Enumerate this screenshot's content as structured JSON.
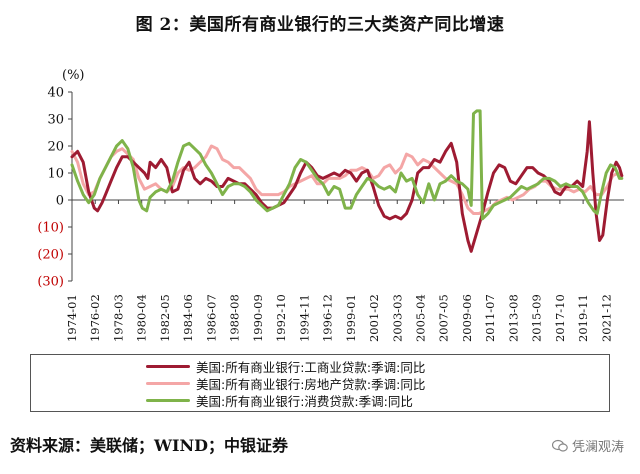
{
  "title": "图 2：美国所有商业银行的三大类资产同比增速",
  "source": "资料来源：美联储；WIND；中银证券",
  "watermark": "凭澜观涛",
  "chart_data": {
    "type": "line",
    "ylabel": "(%)",
    "ylim": [
      -30,
      40
    ],
    "yticks": [
      40,
      30,
      20,
      10,
      0,
      -10,
      -20,
      -30
    ],
    "ytick_labels": [
      "40",
      "30",
      "20",
      "10",
      "0",
      "(10)",
      "(20)",
      "(30)"
    ],
    "negative_tick_color": "#c00000",
    "xlim": [
      1974.0,
      2023.5
    ],
    "x_ticks": [
      "1974-01",
      "1976-02",
      "1978-03",
      "1980-04",
      "1982-05",
      "1984-06",
      "1986-07",
      "1988-08",
      "1990-09",
      "1992-10",
      "1994-11",
      "1996-12",
      "1999-01",
      "2001-02",
      "2003-03",
      "2005-04",
      "2007-05",
      "2009-06",
      "2011-07",
      "2013-08",
      "2015-09",
      "2017-10",
      "2019-11",
      "2021-12"
    ],
    "series": [
      {
        "name": "美国:所有商业银行:工商业贷款:季调:同比",
        "color": "#9e1b32",
        "points": [
          [
            1974.0,
            16
          ],
          [
            1974.5,
            18
          ],
          [
            1975.0,
            14
          ],
          [
            1975.5,
            3
          ],
          [
            1976.0,
            -3
          ],
          [
            1976.3,
            -4
          ],
          [
            1976.7,
            -1
          ],
          [
            1977.0,
            2
          ],
          [
            1977.5,
            7
          ],
          [
            1978.0,
            12
          ],
          [
            1978.5,
            16
          ],
          [
            1979.0,
            16
          ],
          [
            1979.5,
            14
          ],
          [
            1980.0,
            12
          ],
          [
            1980.5,
            10
          ],
          [
            1980.8,
            8
          ],
          [
            1981.0,
            14
          ],
          [
            1981.5,
            12
          ],
          [
            1982.0,
            15
          ],
          [
            1982.5,
            12
          ],
          [
            1983.0,
            3
          ],
          [
            1983.5,
            4
          ],
          [
            1984.0,
            11
          ],
          [
            1984.5,
            14
          ],
          [
            1985.0,
            8
          ],
          [
            1985.5,
            6
          ],
          [
            1986.0,
            8
          ],
          [
            1986.5,
            7
          ],
          [
            1987.0,
            5
          ],
          [
            1987.5,
            5
          ],
          [
            1988.0,
            8
          ],
          [
            1988.5,
            7
          ],
          [
            1989.0,
            6
          ],
          [
            1989.5,
            6
          ],
          [
            1990.0,
            4
          ],
          [
            1990.5,
            2
          ],
          [
            1991.0,
            -1
          ],
          [
            1991.5,
            -3
          ],
          [
            1992.0,
            -3
          ],
          [
            1992.5,
            -2
          ],
          [
            1993.0,
            -1
          ],
          [
            1993.5,
            2
          ],
          [
            1994.0,
            5
          ],
          [
            1994.5,
            10
          ],
          [
            1995.0,
            14
          ],
          [
            1995.5,
            12
          ],
          [
            1996.0,
            9
          ],
          [
            1996.5,
            8
          ],
          [
            1997.0,
            9
          ],
          [
            1997.5,
            10
          ],
          [
            1998.0,
            9
          ],
          [
            1998.5,
            11
          ],
          [
            1999.0,
            10
          ],
          [
            1999.5,
            7
          ],
          [
            2000.0,
            10
          ],
          [
            2000.5,
            11
          ],
          [
            2001.0,
            5
          ],
          [
            2001.5,
            -2
          ],
          [
            2002.0,
            -6
          ],
          [
            2002.5,
            -7
          ],
          [
            2003.0,
            -6
          ],
          [
            2003.5,
            -7
          ],
          [
            2004.0,
            -5
          ],
          [
            2004.5,
            0
          ],
          [
            2005.0,
            10
          ],
          [
            2005.5,
            12
          ],
          [
            2006.0,
            12
          ],
          [
            2006.5,
            15
          ],
          [
            2007.0,
            14
          ],
          [
            2007.5,
            18
          ],
          [
            2008.0,
            21
          ],
          [
            2008.5,
            14
          ],
          [
            2009.0,
            -5
          ],
          [
            2009.5,
            -15
          ],
          [
            2009.8,
            -19
          ],
          [
            2010.3,
            -12
          ],
          [
            2010.8,
            -5
          ],
          [
            2011.3,
            3
          ],
          [
            2011.8,
            10
          ],
          [
            2012.3,
            13
          ],
          [
            2012.8,
            12
          ],
          [
            2013.3,
            7
          ],
          [
            2013.8,
            6
          ],
          [
            2014.3,
            9
          ],
          [
            2014.8,
            12
          ],
          [
            2015.3,
            12
          ],
          [
            2015.8,
            10
          ],
          [
            2016.3,
            9
          ],
          [
            2016.8,
            7
          ],
          [
            2017.3,
            3
          ],
          [
            2017.8,
            2
          ],
          [
            2018.3,
            5
          ],
          [
            2018.8,
            5
          ],
          [
            2019.3,
            7
          ],
          [
            2019.8,
            5
          ],
          [
            2020.2,
            18
          ],
          [
            2020.4,
            29
          ],
          [
            2020.7,
            10
          ],
          [
            2021.0,
            -5
          ],
          [
            2021.3,
            -15
          ],
          [
            2021.6,
            -13
          ],
          [
            2022.0,
            0
          ],
          [
            2022.4,
            10
          ],
          [
            2022.8,
            14
          ],
          [
            2023.1,
            12
          ],
          [
            2023.3,
            9
          ]
        ]
      },
      {
        "name": "美国:所有商业银行:房地产贷款:季调:同比",
        "color": "#f4a6a6",
        "points": [
          [
            1974.0,
            18
          ],
          [
            1974.5,
            14
          ],
          [
            1975.0,
            6
          ],
          [
            1975.5,
            2
          ],
          [
            1976.0,
            3
          ],
          [
            1976.5,
            8
          ],
          [
            1977.0,
            12
          ],
          [
            1977.5,
            16
          ],
          [
            1978.0,
            18
          ],
          [
            1978.5,
            19
          ],
          [
            1979.0,
            17
          ],
          [
            1979.5,
            15
          ],
          [
            1980.0,
            8
          ],
          [
            1980.5,
            4
          ],
          [
            1981.0,
            5
          ],
          [
            1981.5,
            6
          ],
          [
            1982.0,
            4
          ],
          [
            1982.5,
            3
          ],
          [
            1983.0,
            5
          ],
          [
            1983.5,
            10
          ],
          [
            1984.0,
            12
          ],
          [
            1984.5,
            11
          ],
          [
            1985.0,
            12
          ],
          [
            1985.5,
            14
          ],
          [
            1986.0,
            16
          ],
          [
            1986.5,
            20
          ],
          [
            1987.0,
            19
          ],
          [
            1987.5,
            15
          ],
          [
            1988.0,
            14
          ],
          [
            1988.5,
            12
          ],
          [
            1989.0,
            12
          ],
          [
            1989.5,
            10
          ],
          [
            1990.0,
            8
          ],
          [
            1990.5,
            4
          ],
          [
            1991.0,
            2
          ],
          [
            1991.5,
            2
          ],
          [
            1992.0,
            2
          ],
          [
            1992.5,
            2
          ],
          [
            1993.0,
            3
          ],
          [
            1993.5,
            5
          ],
          [
            1994.0,
            6
          ],
          [
            1994.5,
            7
          ],
          [
            1995.0,
            8
          ],
          [
            1995.5,
            9
          ],
          [
            1996.0,
            6
          ],
          [
            1996.5,
            6
          ],
          [
            1997.0,
            8
          ],
          [
            1997.5,
            8
          ],
          [
            1998.0,
            8
          ],
          [
            1998.5,
            9
          ],
          [
            1999.0,
            11
          ],
          [
            1999.5,
            11
          ],
          [
            2000.0,
            12
          ],
          [
            2000.5,
            11
          ],
          [
            2001.0,
            8
          ],
          [
            2001.5,
            9
          ],
          [
            2002.0,
            12
          ],
          [
            2002.5,
            13
          ],
          [
            2003.0,
            10
          ],
          [
            2003.5,
            12
          ],
          [
            2004.0,
            17
          ],
          [
            2004.5,
            16
          ],
          [
            2005.0,
            13
          ],
          [
            2005.5,
            15
          ],
          [
            2006.0,
            14
          ],
          [
            2006.5,
            12
          ],
          [
            2007.0,
            10
          ],
          [
            2007.5,
            8
          ],
          [
            2008.0,
            7
          ],
          [
            2008.5,
            6
          ],
          [
            2009.0,
            2
          ],
          [
            2009.5,
            -3
          ],
          [
            2010.0,
            -5
          ],
          [
            2010.5,
            -5
          ],
          [
            2011.0,
            -4
          ],
          [
            2011.5,
            -3
          ],
          [
            2012.0,
            -1
          ],
          [
            2012.5,
            0
          ],
          [
            2013.0,
            1
          ],
          [
            2013.5,
            0
          ],
          [
            2014.0,
            1
          ],
          [
            2014.5,
            2
          ],
          [
            2015.0,
            4
          ],
          [
            2015.5,
            5
          ],
          [
            2016.0,
            7
          ],
          [
            2016.5,
            7
          ],
          [
            2017.0,
            5
          ],
          [
            2017.5,
            4
          ],
          [
            2018.0,
            4
          ],
          [
            2018.5,
            4
          ],
          [
            2019.0,
            3
          ],
          [
            2019.5,
            4
          ],
          [
            2020.0,
            3
          ],
          [
            2020.5,
            5
          ],
          [
            2021.0,
            2
          ],
          [
            2021.5,
            2
          ],
          [
            2022.0,
            5
          ],
          [
            2022.5,
            9
          ],
          [
            2023.0,
            10
          ],
          [
            2023.3,
            9
          ]
        ]
      },
      {
        "name": "美国:所有商业银行:消费贷款:季调:同比",
        "color": "#7fb34a",
        "points": [
          [
            1974.0,
            13
          ],
          [
            1974.5,
            7
          ],
          [
            1975.0,
            2
          ],
          [
            1975.5,
            -1
          ],
          [
            1976.0,
            2
          ],
          [
            1976.5,
            8
          ],
          [
            1977.0,
            12
          ],
          [
            1977.5,
            16
          ],
          [
            1978.0,
            20
          ],
          [
            1978.5,
            22
          ],
          [
            1979.0,
            19
          ],
          [
            1979.5,
            12
          ],
          [
            1980.0,
            0
          ],
          [
            1980.3,
            -3
          ],
          [
            1980.7,
            -4
          ],
          [
            1981.0,
            1
          ],
          [
            1981.5,
            3
          ],
          [
            1982.0,
            4
          ],
          [
            1982.5,
            3
          ],
          [
            1983.0,
            7
          ],
          [
            1983.5,
            14
          ],
          [
            1984.0,
            20
          ],
          [
            1984.5,
            21
          ],
          [
            1985.0,
            19
          ],
          [
            1985.5,
            17
          ],
          [
            1986.0,
            13
          ],
          [
            1986.5,
            10
          ],
          [
            1987.0,
            6
          ],
          [
            1987.5,
            2
          ],
          [
            1988.0,
            5
          ],
          [
            1988.5,
            6
          ],
          [
            1989.0,
            6
          ],
          [
            1989.5,
            5
          ],
          [
            1990.0,
            3
          ],
          [
            1990.5,
            0
          ],
          [
            1991.0,
            -2
          ],
          [
            1991.5,
            -4
          ],
          [
            1992.0,
            -3
          ],
          [
            1992.5,
            -2
          ],
          [
            1993.0,
            2
          ],
          [
            1993.5,
            6
          ],
          [
            1994.0,
            12
          ],
          [
            1994.5,
            15
          ],
          [
            1995.0,
            14
          ],
          [
            1995.5,
            11
          ],
          [
            1996.0,
            8
          ],
          [
            1996.5,
            6
          ],
          [
            1997.0,
            2
          ],
          [
            1997.5,
            5
          ],
          [
            1998.0,
            4
          ],
          [
            1998.5,
            -3
          ],
          [
            1999.0,
            -3
          ],
          [
            1999.5,
            2
          ],
          [
            2000.0,
            5
          ],
          [
            2000.5,
            8
          ],
          [
            2001.0,
            7
          ],
          [
            2001.5,
            5
          ],
          [
            2002.0,
            4
          ],
          [
            2002.5,
            5
          ],
          [
            2003.0,
            3
          ],
          [
            2003.5,
            10
          ],
          [
            2004.0,
            7
          ],
          [
            2004.5,
            8
          ],
          [
            2005.0,
            2
          ],
          [
            2005.5,
            -1
          ],
          [
            2006.0,
            6
          ],
          [
            2006.5,
            0
          ],
          [
            2007.0,
            6
          ],
          [
            2007.5,
            7
          ],
          [
            2008.0,
            9
          ],
          [
            2008.5,
            7
          ],
          [
            2009.0,
            6
          ],
          [
            2009.5,
            4
          ],
          [
            2009.8,
            -2
          ],
          [
            2010.0,
            32
          ],
          [
            2010.3,
            33
          ],
          [
            2010.6,
            33
          ],
          [
            2010.8,
            -7
          ],
          [
            2011.3,
            -5
          ],
          [
            2011.8,
            -2
          ],
          [
            2012.3,
            -1
          ],
          [
            2012.8,
            0
          ],
          [
            2013.3,
            1
          ],
          [
            2013.8,
            3
          ],
          [
            2014.3,
            5
          ],
          [
            2014.8,
            4
          ],
          [
            2015.3,
            5
          ],
          [
            2015.8,
            6
          ],
          [
            2016.3,
            8
          ],
          [
            2016.8,
            8
          ],
          [
            2017.3,
            7
          ],
          [
            2017.8,
            5
          ],
          [
            2018.3,
            6
          ],
          [
            2018.8,
            5
          ],
          [
            2019.3,
            5
          ],
          [
            2019.8,
            3
          ],
          [
            2020.3,
            -1
          ],
          [
            2020.8,
            -4
          ],
          [
            2021.1,
            -5
          ],
          [
            2021.5,
            3
          ],
          [
            2021.9,
            10
          ],
          [
            2022.3,
            13
          ],
          [
            2022.7,
            12
          ],
          [
            2023.1,
            8
          ],
          [
            2023.3,
            8
          ]
        ]
      }
    ]
  }
}
